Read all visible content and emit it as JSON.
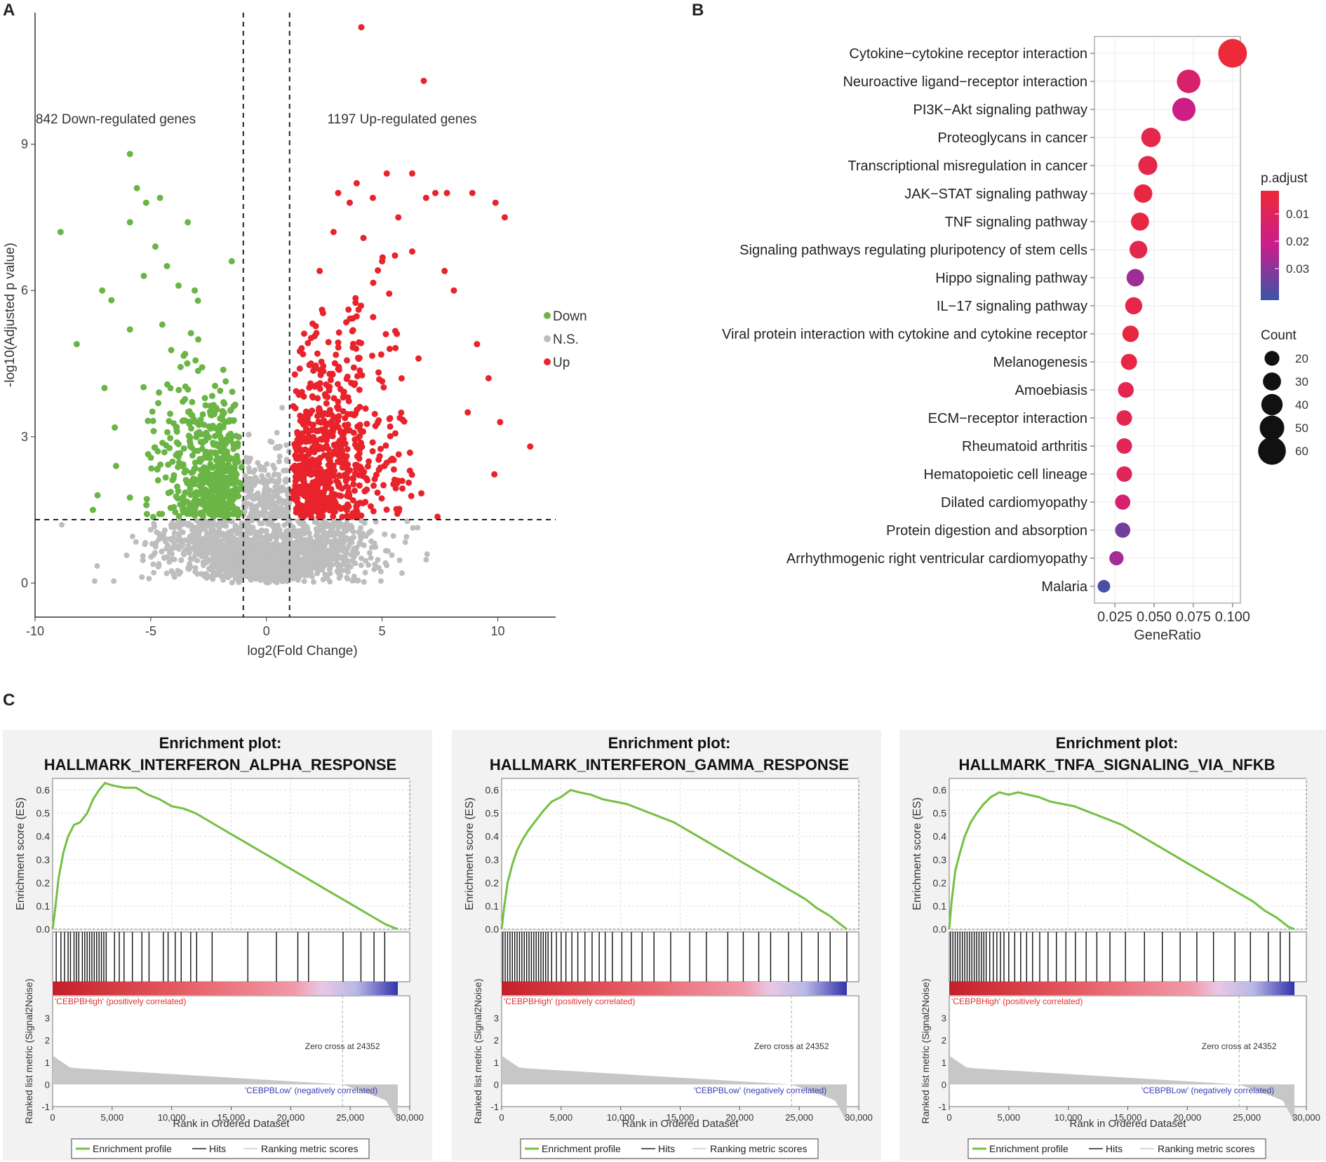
{
  "panel_labels": {
    "a": "A",
    "b": "B",
    "c": "C"
  },
  "colors": {
    "down": "#6ab545",
    "ns": "#bdbdbd",
    "up": "#e8232b",
    "es_line": "#74c043",
    "ranked_fill": "#c7c7c7",
    "low_p": "#ee2a36",
    "high_p": "#3a55a8",
    "pos_label": "#e03030",
    "neg_label": "#3838b8"
  },
  "chart_data": [
    {
      "id": "volcano",
      "type": "scatter",
      "title": "",
      "xlabel": "log2(Fold Change)",
      "ylabel": "-log10(Adjusted p value)",
      "xlim": [
        -10,
        12.5
      ],
      "ylim": [
        -0.7,
        11.7
      ],
      "xticks": [
        "-10",
        "-5",
        "0",
        "5",
        "10"
      ],
      "yticks": [
        "0",
        "3",
        "6",
        "9"
      ],
      "thresholds": {
        "log2fc": [
          -1,
          1
        ],
        "neg_log10_p": 1.3
      },
      "annotations": {
        "down_text": "842 Down-regulated genes",
        "up_text": "1197 Up-regulated genes"
      },
      "legend": {
        "title": "",
        "entries": [
          "Down",
          "N.S.",
          "Up"
        ]
      },
      "counts": {
        "down": 842,
        "up": 1197
      },
      "highlight_points": {
        "up": [
          [
            4.1,
            11.4
          ],
          [
            6.8,
            10.3
          ],
          [
            5.2,
            8.4
          ],
          [
            6.3,
            8.4
          ],
          [
            3.1,
            8.0
          ],
          [
            9.9,
            7.8
          ],
          [
            10.3,
            7.5
          ],
          [
            8.9,
            8.0
          ],
          [
            7.8,
            8.0
          ],
          [
            11.4,
            2.8
          ],
          [
            10.1,
            3.3
          ],
          [
            3.6,
            7.8
          ],
          [
            5.7,
            7.5
          ],
          [
            7.3,
            8.0
          ],
          [
            9.1,
            4.9
          ],
          [
            8.7,
            3.5
          ],
          [
            9.6,
            4.2
          ],
          [
            4.6,
            7.9
          ],
          [
            3.9,
            8.2
          ],
          [
            6.9,
            7.9
          ],
          [
            2.3,
            6.4
          ],
          [
            8.1,
            6.0
          ],
          [
            7.7,
            6.4
          ],
          [
            6.3,
            6.8
          ],
          [
            5.0,
            6.6
          ],
          [
            2.9,
            7.2
          ]
        ],
        "down": [
          [
            -8.9,
            7.2
          ],
          [
            -5.9,
            8.8
          ],
          [
            -5.6,
            8.1
          ],
          [
            -4.6,
            7.9
          ],
          [
            -5.2,
            7.8
          ],
          [
            -3.4,
            7.4
          ],
          [
            -5.9,
            7.4
          ],
          [
            -4.8,
            6.9
          ],
          [
            -1.5,
            6.6
          ],
          [
            -7.1,
            6.0
          ],
          [
            -8.2,
            4.9
          ],
          [
            -6.7,
            5.8
          ],
          [
            -5.9,
            5.2
          ],
          [
            -3.1,
            6.0
          ],
          [
            -7.5,
            1.5
          ],
          [
            -7.3,
            1.8
          ],
          [
            -6.5,
            2.4
          ],
          [
            -5.3,
            6.3
          ],
          [
            -3.8,
            6.1
          ],
          [
            -4.3,
            6.5
          ],
          [
            -7.0,
            4.0
          ],
          [
            -4.5,
            5.3
          ]
        ]
      }
    },
    {
      "id": "kegg_dotplot",
      "type": "scatter",
      "title": "",
      "xlabel": "GeneRatio",
      "ylabel": "",
      "xlim": [
        0.012,
        0.105
      ],
      "xticks": [
        0.025,
        0.05,
        0.075,
        0.1
      ],
      "xtick_labels": [
        "0.025",
        "0.050",
        "0.075",
        "0.100"
      ],
      "categories": [
        "Cytokine−cytokine receptor interaction",
        "Neuroactive ligand−receptor interaction",
        "PI3K−Akt signaling pathway",
        "Proteoglycans in cancer",
        "Transcriptional misregulation in cancer",
        "JAK−STAT signaling pathway",
        "TNF signaling pathway",
        "Signaling pathways regulating pluripotency of stem cells",
        "Hippo signaling pathway",
        "IL−17 signaling pathway",
        "Viral protein interaction with cytokine and cytokine receptor",
        "Melanogenesis",
        "Amoebiasis",
        "ECM−receptor interaction",
        "Rheumatoid arthritis",
        "Hematopoietic cell lineage",
        "Dilated cardiomyopathy",
        "Protein digestion and absorption",
        "Arrhythmogenic right ventricular cardiomyopathy",
        "Malaria"
      ],
      "gene_ratio": [
        0.1,
        0.072,
        0.069,
        0.048,
        0.046,
        0.043,
        0.041,
        0.04,
        0.038,
        0.037,
        0.035,
        0.034,
        0.032,
        0.031,
        0.031,
        0.031,
        0.03,
        0.03,
        0.026,
        0.018
      ],
      "count": [
        63,
        47,
        46,
        34,
        33,
        31,
        30,
        29,
        28,
        27,
        25,
        24,
        23,
        22,
        22,
        22,
        21,
        21,
        18,
        13
      ],
      "p_adjust": [
        0.0006,
        0.012,
        0.018,
        0.005,
        0.005,
        0.003,
        0.003,
        0.006,
        0.026,
        0.004,
        0.003,
        0.003,
        0.006,
        0.006,
        0.007,
        0.008,
        0.013,
        0.032,
        0.025,
        0.038
      ],
      "color_legend": {
        "title": "p.adjust",
        "ticks": [
          "0.01",
          "0.02",
          "0.03"
        ],
        "values": [
          0.01,
          0.02,
          0.03
        ],
        "range": [
          0,
          0.04
        ]
      },
      "size_legend": {
        "title": "Count",
        "labels": [
          "20",
          "30",
          "40",
          "50",
          "60"
        ],
        "values": [
          20,
          30,
          40,
          50,
          60
        ]
      }
    },
    {
      "id": "gsea_alpha",
      "type": "line",
      "title": "Enrichment plot:",
      "subtitle": "HALLMARK_INTERFERON_ALPHA_RESPONSE",
      "es_ylabel": "Enrichment score (ES)",
      "metric_ylabel": "Ranked list metric (Signal2Noise)",
      "xlabel": "Rank in Ordered Dataset",
      "xlim": [
        0,
        30000
      ],
      "x_ticks": [
        "0",
        "5,000",
        "10,000",
        "15,000",
        "20,000",
        "25,000",
        "30,000"
      ],
      "es_ylim": [
        0,
        0.65
      ],
      "es_ticks": [
        "0.0",
        "0.1",
        "0.2",
        "0.3",
        "0.4",
        "0.5",
        "0.6"
      ],
      "metric_ylim": [
        -1,
        4
      ],
      "metric_ticks": [
        "-1",
        "0",
        "1",
        "2",
        "3"
      ],
      "series": [
        {
          "name": "Enrichment profile",
          "x": [
            0,
            200,
            500,
            900,
            1300,
            1800,
            2300,
            2900,
            3400,
            3900,
            4400,
            5000,
            6000,
            7000,
            8000,
            9000,
            10000,
            11000,
            12000,
            13000,
            14000,
            15000,
            16000,
            17000,
            18000,
            19000,
            20000,
            21000,
            22000,
            23000,
            24000,
            25000,
            26000,
            27000,
            28000,
            29000
          ],
          "values": [
            0.0,
            0.08,
            0.22,
            0.33,
            0.4,
            0.45,
            0.46,
            0.5,
            0.56,
            0.6,
            0.63,
            0.62,
            0.61,
            0.61,
            0.58,
            0.56,
            0.53,
            0.52,
            0.5,
            0.47,
            0.44,
            0.41,
            0.38,
            0.35,
            0.32,
            0.29,
            0.26,
            0.23,
            0.2,
            0.17,
            0.14,
            0.11,
            0.08,
            0.05,
            0.02,
            0.0
          ]
        }
      ],
      "hits": [
        300,
        700,
        1000,
        1300,
        1500,
        1800,
        2000,
        2200,
        2500,
        2700,
        2900,
        3100,
        3300,
        3500,
        3700,
        3900,
        4100,
        4300,
        4500,
        5200,
        5600,
        6000,
        6700,
        7500,
        8100,
        9300,
        9700,
        10300,
        10800,
        11600,
        12100,
        13400,
        16400,
        18800,
        20600,
        21500,
        24400,
        25900,
        27000,
        27900
      ],
      "zero_cross_text": "Zero cross at 24352",
      "zero_cross": 24352,
      "pos_label": "'CEBPBHigh' (positively correlated)",
      "neg_label": "'CEBPBLow' (negatively correlated)",
      "legend": [
        "Enrichment profile",
        "Hits",
        "Ranking metric scores"
      ]
    },
    {
      "id": "gsea_gamma",
      "type": "line",
      "title": "Enrichment plot:",
      "subtitle": "HALLMARK_INTERFERON_GAMMA_RESPONSE",
      "es_ylabel": "Enrichment score (ES)",
      "metric_ylabel": "Ranked list metric (Signal2Noise)",
      "xlabel": "Rank in Ordered Dataset",
      "xlim": [
        0,
        30000
      ],
      "x_ticks": [
        "0",
        "5,000",
        "10,000",
        "15,000",
        "20,000",
        "25,000",
        "30,000"
      ],
      "es_ylim": [
        0,
        0.65
      ],
      "es_ticks": [
        "0.0",
        "0.1",
        "0.2",
        "0.3",
        "0.4",
        "0.5",
        "0.6"
      ],
      "metric_ylim": [
        -1,
        4
      ],
      "metric_ticks": [
        "-1",
        "0",
        "1",
        "2",
        "3"
      ],
      "series": [
        {
          "name": "Enrichment profile",
          "x": [
            0,
            200,
            500,
            900,
            1300,
            1800,
            2300,
            2900,
            3500,
            4200,
            5000,
            5800,
            6500,
            7500,
            8500,
            9500,
            10500,
            11500,
            12500,
            13500,
            14500,
            15500,
            16500,
            17500,
            18500,
            19500,
            20500,
            21500,
            22500,
            23500,
            24500,
            25500,
            26500,
            27500,
            28500,
            29000
          ],
          "values": [
            0.0,
            0.09,
            0.2,
            0.28,
            0.34,
            0.39,
            0.43,
            0.47,
            0.51,
            0.55,
            0.57,
            0.6,
            0.59,
            0.58,
            0.56,
            0.55,
            0.54,
            0.52,
            0.5,
            0.48,
            0.46,
            0.43,
            0.4,
            0.37,
            0.34,
            0.31,
            0.28,
            0.25,
            0.22,
            0.19,
            0.16,
            0.13,
            0.09,
            0.06,
            0.02,
            0.0
          ]
        }
      ],
      "hits": [
        100,
        300,
        500,
        700,
        900,
        1100,
        1300,
        1500,
        1700,
        1900,
        2100,
        2300,
        2500,
        2700,
        2900,
        3100,
        3300,
        3500,
        3700,
        3900,
        4200,
        4600,
        5000,
        5400,
        5900,
        6400,
        7000,
        7600,
        8200,
        8700,
        9300,
        10100,
        10900,
        11800,
        12800,
        14200,
        15800,
        17200,
        19000,
        20300,
        21600,
        22600,
        24100,
        25200,
        26600,
        27600,
        29000
      ],
      "zero_cross_text": "Zero cross at 24352",
      "zero_cross": 24352,
      "pos_label": "'CEBPBHigh' (positively correlated)",
      "neg_label": "'CEBPBLow' (negatively correlated)",
      "legend": [
        "Enrichment profile",
        "Hits",
        "Ranking metric scores"
      ]
    },
    {
      "id": "gsea_tnfa",
      "type": "line",
      "title": "Enrichment plot:",
      "subtitle": "HALLMARK_TNFA_SIGNALING_VIA_NFKB",
      "es_ylabel": "Enrichment score (ES)",
      "metric_ylabel": "Ranked list metric (Signal2Noise)",
      "xlabel": "Rank in Ordered Dataset",
      "xlim": [
        0,
        30000
      ],
      "x_ticks": [
        "0",
        "5,000",
        "10,000",
        "15,000",
        "20,000",
        "25,000",
        "30,000"
      ],
      "es_ylim": [
        0,
        0.65
      ],
      "es_ticks": [
        "0.0",
        "0.1",
        "0.2",
        "0.3",
        "0.4",
        "0.5",
        "0.6"
      ],
      "metric_ylim": [
        -1,
        4
      ],
      "metric_ticks": [
        "-1",
        "0",
        "1",
        "2",
        "3"
      ],
      "series": [
        {
          "name": "Enrichment profile",
          "x": [
            0,
            200,
            500,
            900,
            1300,
            1800,
            2300,
            2900,
            3500,
            4200,
            5000,
            5800,
            6600,
            7500,
            8500,
            9500,
            10500,
            11500,
            12500,
            13500,
            14500,
            15500,
            16500,
            17500,
            18500,
            19500,
            20500,
            21500,
            22500,
            23500,
            24500,
            25500,
            26500,
            27500,
            28500,
            29000
          ],
          "values": [
            0.0,
            0.12,
            0.25,
            0.33,
            0.4,
            0.46,
            0.5,
            0.54,
            0.57,
            0.59,
            0.58,
            0.59,
            0.58,
            0.57,
            0.55,
            0.54,
            0.53,
            0.51,
            0.49,
            0.47,
            0.45,
            0.42,
            0.39,
            0.36,
            0.33,
            0.3,
            0.27,
            0.24,
            0.21,
            0.18,
            0.15,
            0.12,
            0.08,
            0.05,
            0.01,
            0.0
          ]
        }
      ],
      "hits": [
        100,
        300,
        500,
        700,
        900,
        1100,
        1300,
        1500,
        1700,
        1900,
        2100,
        2300,
        2500,
        2700,
        2900,
        3100,
        3400,
        3700,
        4000,
        4300,
        4600,
        5000,
        5500,
        6000,
        6500,
        7000,
        7600,
        8300,
        9000,
        9800,
        10600,
        11500,
        12400,
        13500,
        14800,
        16400,
        17900,
        19400,
        20800,
        22200,
        24000,
        25300,
        26800,
        27800,
        28600
      ],
      "zero_cross_text": "Zero cross at 24352",
      "zero_cross": 24352,
      "pos_label": "'CEBPBHigh' (positively correlated)",
      "neg_label": "'CEBPBLow' (negatively correlated)",
      "legend": [
        "Enrichment profile",
        "Hits",
        "Ranking metric scores"
      ]
    }
  ]
}
